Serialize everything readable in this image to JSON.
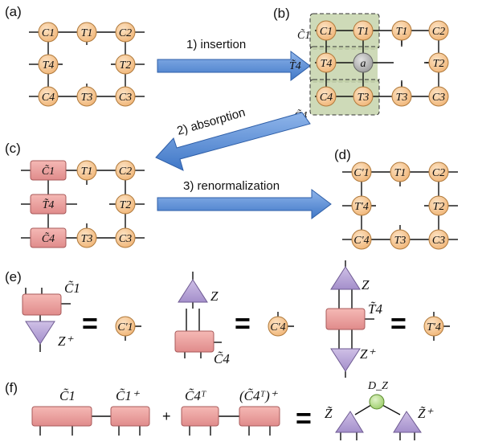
{
  "panels": {
    "a": "(a)",
    "b": "(b)",
    "c": "(c)",
    "d": "(d)",
    "e": "(e)",
    "f": "(f)"
  },
  "steps": {
    "insertion": "1) insertion",
    "absorption": "2) absorption",
    "renormalization": "3) renormalization"
  },
  "tensors": {
    "C1": "C1",
    "C2": "C2",
    "C3": "C3",
    "C4": "C4",
    "T1": "T1",
    "T2": "T2",
    "T3": "T3",
    "T4": "T4",
    "a": "a",
    "C1p": "C'1",
    "T4p": "T'4",
    "C4p": "C'4",
    "C1t": "C̃1",
    "T4t": "T̃4",
    "C4t": "C̃4",
    "Z": "Z",
    "Zplus": "Z⁺",
    "C1t_plus": "C̃1⁺",
    "C4tT": "C̃4ᵀ",
    "C4tT_plus": "(C̃4ᵀ)⁺",
    "Zt": "Z̃",
    "Zt_plus": "Z̃⁺",
    "DZ": "D_Z"
  },
  "operators": {
    "eq": "=",
    "plus": "+"
  },
  "colors": {
    "node_fill": "#f6c896",
    "node_stroke": "#b07a3c",
    "box_fill": "#ec9c9c",
    "box_stroke": "#a85a5a",
    "tri_fill": "#b7a3d6",
    "tri_stroke": "#6e5a92",
    "a_fill": "#b3b3b3",
    "dz_fill": "#b5dc8a",
    "overlay_fill": "#c5d3ac",
    "arrow_fill": "#5b8fd6",
    "arrow_stroke": "#2f5fa8"
  }
}
